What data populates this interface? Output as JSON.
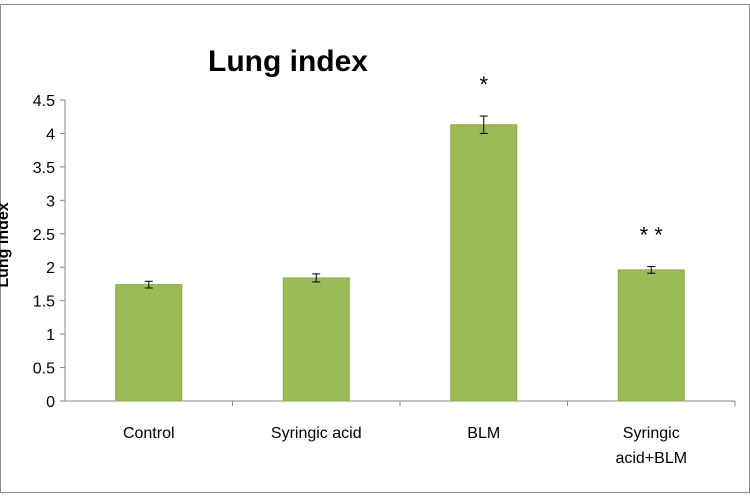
{
  "chart_data": {
    "type": "bar",
    "title": "Lung index",
    "ylabel": "Lung index",
    "xlabel": "",
    "categories": [
      [
        "Control"
      ],
      [
        "Syringic acid"
      ],
      [
        "BLM"
      ],
      [
        "Syringic",
        "acid+BLM"
      ]
    ],
    "values": [
      1.74,
      1.84,
      4.13,
      1.96
    ],
    "errors": [
      0.05,
      0.06,
      0.13,
      0.05
    ],
    "annotations": [
      "",
      "",
      "*",
      "**"
    ],
    "ylim": [
      0,
      4.5
    ],
    "yticks": [
      "0",
      "0.5",
      "1",
      "1.5",
      "2",
      "2.5",
      "3",
      "3.5",
      "4",
      "4.5"
    ],
    "grid": false,
    "legend": false,
    "bar_color": "#9bbb59",
    "bar_edge_color": "#8aab4a"
  }
}
